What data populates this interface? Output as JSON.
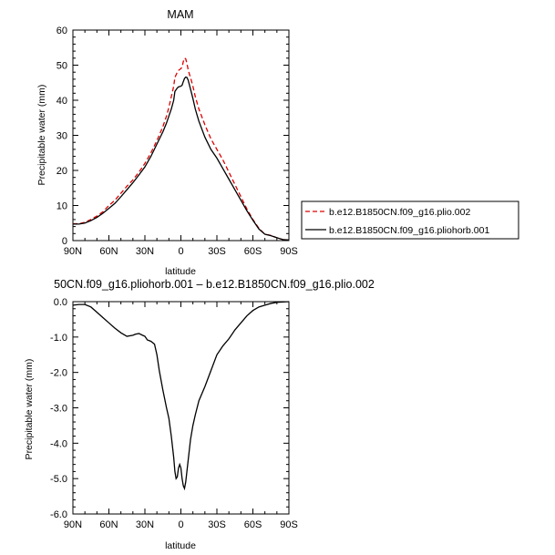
{
  "chart_data": [
    {
      "type": "line",
      "title": "MAM",
      "xlabel": "latitude",
      "ylabel": "Precipitable water (mm)",
      "x_ticks": [
        "90N",
        "60N",
        "30N",
        "0",
        "30S",
        "60S",
        "90S"
      ],
      "x_tick_values": [
        90,
        60,
        30,
        0,
        -30,
        -60,
        -90
      ],
      "ylim": [
        0,
        60
      ],
      "y_ticks": [
        "0",
        "10",
        "20",
        "30",
        "40",
        "50",
        "60"
      ],
      "y_tick_values": [
        0,
        10,
        20,
        30,
        40,
        50,
        60
      ],
      "series": [
        {
          "name": "b.e12.B1850CN.f09_g16.plio.002",
          "color": "#dd0000",
          "dash": true,
          "x": [
            90,
            85,
            80,
            75,
            70,
            65,
            60,
            55,
            50,
            45,
            40,
            35,
            30,
            25,
            20,
            15,
            12,
            10,
            8,
            6,
            5,
            3,
            2,
            0,
            -1,
            -2,
            -3,
            -4,
            -5,
            -6,
            -7,
            -8,
            -10,
            -12,
            -15,
            -20,
            -25,
            -30,
            -35,
            -40,
            -45,
            -50,
            -55,
            -60,
            -65,
            -70,
            -75,
            -80,
            -85,
            -90
          ],
          "y": [
            4.8,
            4.8,
            5.2,
            6.0,
            7.0,
            8.2,
            10.0,
            11.5,
            13.5,
            15.5,
            17.3,
            19.5,
            22.0,
            25.0,
            28.5,
            32.5,
            35.5,
            38.0,
            41.0,
            44.0,
            46.5,
            48.0,
            48.5,
            49.0,
            49.5,
            51.0,
            52.0,
            51.8,
            50.5,
            48.8,
            47.5,
            46.5,
            44.0,
            41.0,
            37.5,
            33.0,
            29.0,
            26.0,
            23.0,
            19.5,
            16.0,
            12.5,
            9.0,
            6.0,
            3.5,
            1.8,
            1.5,
            0.8,
            0.3,
            0.2
          ]
        },
        {
          "name": "b.e12.B1850CN.f09_g16.pliohorb.001",
          "color": "#000000",
          "dash": false,
          "x": [
            90,
            85,
            80,
            75,
            70,
            65,
            60,
            55,
            50,
            45,
            40,
            35,
            30,
            25,
            20,
            15,
            12,
            10,
            8,
            6,
            5,
            3,
            2,
            0,
            -1,
            -2,
            -3,
            -4,
            -5,
            -6,
            -7,
            -8,
            -10,
            -12,
            -15,
            -20,
            -25,
            -30,
            -35,
            -40,
            -45,
            -50,
            -55,
            -60,
            -65,
            -70,
            -75,
            -80,
            -85,
            -90
          ],
          "y": [
            4.7,
            4.7,
            5.0,
            5.7,
            6.6,
            7.8,
            9.2,
            10.6,
            12.5,
            14.5,
            16.5,
            18.7,
            21.0,
            24.0,
            27.5,
            31.0,
            33.5,
            35.5,
            37.5,
            40.0,
            42.5,
            43.5,
            43.8,
            44.0,
            44.3,
            45.3,
            46.2,
            46.6,
            46.5,
            45.8,
            44.5,
            43.2,
            40.5,
            37.5,
            34.0,
            29.5,
            26.0,
            23.5,
            20.5,
            17.5,
            14.5,
            11.5,
            8.5,
            5.8,
            3.3,
            1.8,
            1.4,
            0.8,
            0.3,
            0.2
          ]
        }
      ],
      "legend_position": "right"
    },
    {
      "type": "line",
      "title": "50CN.f09_g16.pliohorb.001 – b.e12.B1850CN.f09_g16.plio.002",
      "xlabel": "latitude",
      "ylabel": "Precipitable water (mm)",
      "x_ticks": [
        "90N",
        "60N",
        "30N",
        "0",
        "30S",
        "60S",
        "90S"
      ],
      "x_tick_values": [
        90,
        60,
        30,
        0,
        -30,
        -60,
        -90
      ],
      "ylim": [
        -6.0,
        0.0
      ],
      "y_ticks": [
        "0.0",
        "-1.0",
        "-2.0",
        "-3.0",
        "-4.0",
        "-5.0",
        "-6.0"
      ],
      "y_tick_values": [
        0,
        -1,
        -2,
        -3,
        -4,
        -5,
        -6
      ],
      "series": [
        {
          "name": "",
          "color": "#000000",
          "dash": false,
          "x": [
            90,
            85,
            80,
            75,
            70,
            65,
            60,
            55,
            50,
            45,
            40,
            38,
            35,
            32,
            30,
            28,
            25,
            22,
            20,
            18,
            15,
            12,
            10,
            8,
            6,
            5,
            4,
            3,
            2,
            1,
            0,
            -1,
            -2,
            -3,
            -4,
            -5,
            -6,
            -7,
            -8,
            -10,
            -12,
            -15,
            -20,
            -25,
            -30,
            -35,
            -40,
            -45,
            -50,
            -55,
            -60,
            -65,
            -70,
            -75,
            -80,
            -85,
            -90
          ],
          "y": [
            -0.1,
            -0.08,
            -0.08,
            -0.15,
            -0.3,
            -0.45,
            -0.6,
            -0.75,
            -0.88,
            -0.98,
            -0.95,
            -0.92,
            -0.9,
            -0.95,
            -0.98,
            -1.08,
            -1.12,
            -1.2,
            -1.5,
            -1.95,
            -2.5,
            -3.0,
            -3.3,
            -3.8,
            -4.4,
            -4.8,
            -5.0,
            -4.95,
            -4.7,
            -4.6,
            -4.7,
            -5.0,
            -5.2,
            -5.28,
            -5.1,
            -4.8,
            -4.5,
            -4.2,
            -3.9,
            -3.5,
            -3.2,
            -2.8,
            -2.4,
            -1.95,
            -1.5,
            -1.25,
            -1.05,
            -0.8,
            -0.6,
            -0.4,
            -0.25,
            -0.15,
            -0.1,
            -0.05,
            -0.02,
            -0.01,
            0.0
          ]
        }
      ]
    }
  ]
}
